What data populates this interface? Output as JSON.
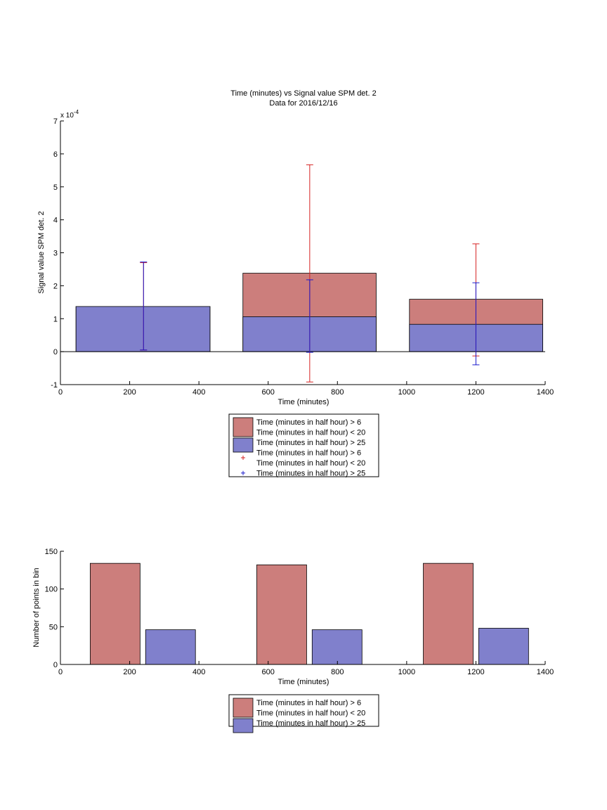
{
  "colors": {
    "red_bar": "#cc7e7c",
    "blue_bar": "#8080cc",
    "red_err": "#d62222",
    "blue_err": "#1a1acc"
  },
  "chart_data": [
    {
      "type": "bar",
      "title": "Time (minutes) vs Signal value SPM det. 2",
      "subtitle": "Data for 2016/12/16",
      "xlabel": "Time (minutes)",
      "ylabel": "Signal value SPM det. 2",
      "exponent_label": "x 10",
      "exponent_power": "-4",
      "xlim": [
        0,
        1400
      ],
      "ylim": [
        -1,
        7
      ],
      "xticks": [
        "0",
        "200",
        "400",
        "600",
        "800",
        "1000",
        "1200",
        "1400"
      ],
      "yticks": [
        "-1",
        "0",
        "1",
        "2",
        "3",
        "4",
        "5",
        "6",
        "7"
      ],
      "stacked": true,
      "bins": [
        {
          "x0": 45,
          "x1": 432,
          "blue": 1.37,
          "red": 1.37
        },
        {
          "x0": 527,
          "x1": 912,
          "blue": 1.06,
          "red": 2.38
        },
        {
          "x0": 1008,
          "x1": 1393,
          "blue": 0.83,
          "red": 1.59
        }
      ],
      "errorbars": [
        {
          "series": "red",
          "x": 240,
          "low": 0.05,
          "high": 2.7
        },
        {
          "series": "blue",
          "x": 240,
          "low": 0.05,
          "high": 2.72
        },
        {
          "series": "red",
          "x": 720,
          "low": -0.92,
          "high": 5.67
        },
        {
          "series": "blue",
          "x": 720,
          "low": -0.02,
          "high": 2.18
        },
        {
          "series": "red",
          "x": 1200,
          "low": -0.13,
          "high": 3.27
        },
        {
          "series": "blue",
          "x": 1200,
          "low": -0.4,
          "high": 2.09
        }
      ],
      "legend": {
        "position": "below",
        "entries": [
          {
            "kind": "patch",
            "series": "red",
            "lines": [
              "Time (minutes in half hour) > 6",
              "Time (minutes in half hour) < 20"
            ]
          },
          {
            "kind": "patch",
            "series": "blue",
            "lines": [
              "Time (minutes in half hour) > 25"
            ]
          },
          {
            "kind": "marker",
            "series": "red",
            "lines": [
              "Time (minutes in half hour) > 6",
              "Time (minutes in half hour) < 20"
            ]
          },
          {
            "kind": "marker",
            "series": "blue",
            "lines": [
              "Time (minutes in half hour) > 25"
            ]
          }
        ]
      }
    },
    {
      "type": "bar",
      "xlabel": "Time (minutes)",
      "ylabel": "Number of points in bin",
      "xlim": [
        0,
        1400
      ],
      "ylim": [
        0,
        150
      ],
      "xticks": [
        "0",
        "200",
        "400",
        "600",
        "800",
        "1000",
        "1200",
        "1400"
      ],
      "yticks": [
        "0",
        "50",
        "100",
        "150"
      ],
      "bars": [
        {
          "series": "red",
          "x0": 86,
          "x1": 230,
          "value": 134
        },
        {
          "series": "blue",
          "x0": 246,
          "x1": 390,
          "value": 46
        },
        {
          "series": "red",
          "x0": 567,
          "x1": 711,
          "value": 132
        },
        {
          "series": "blue",
          "x0": 727,
          "x1": 871,
          "value": 46
        },
        {
          "series": "red",
          "x0": 1048,
          "x1": 1192,
          "value": 134
        },
        {
          "series": "blue",
          "x0": 1208,
          "x1": 1352,
          "value": 48
        }
      ],
      "legend": {
        "position": "below",
        "entries": [
          {
            "kind": "patch",
            "series": "red",
            "lines": [
              "Time (minutes in half hour) > 6",
              "Time (minutes in half hour) < 20"
            ]
          },
          {
            "kind": "patch",
            "series": "blue",
            "lines": [
              "Time (minutes in half hour) > 25"
            ]
          }
        ]
      }
    }
  ]
}
